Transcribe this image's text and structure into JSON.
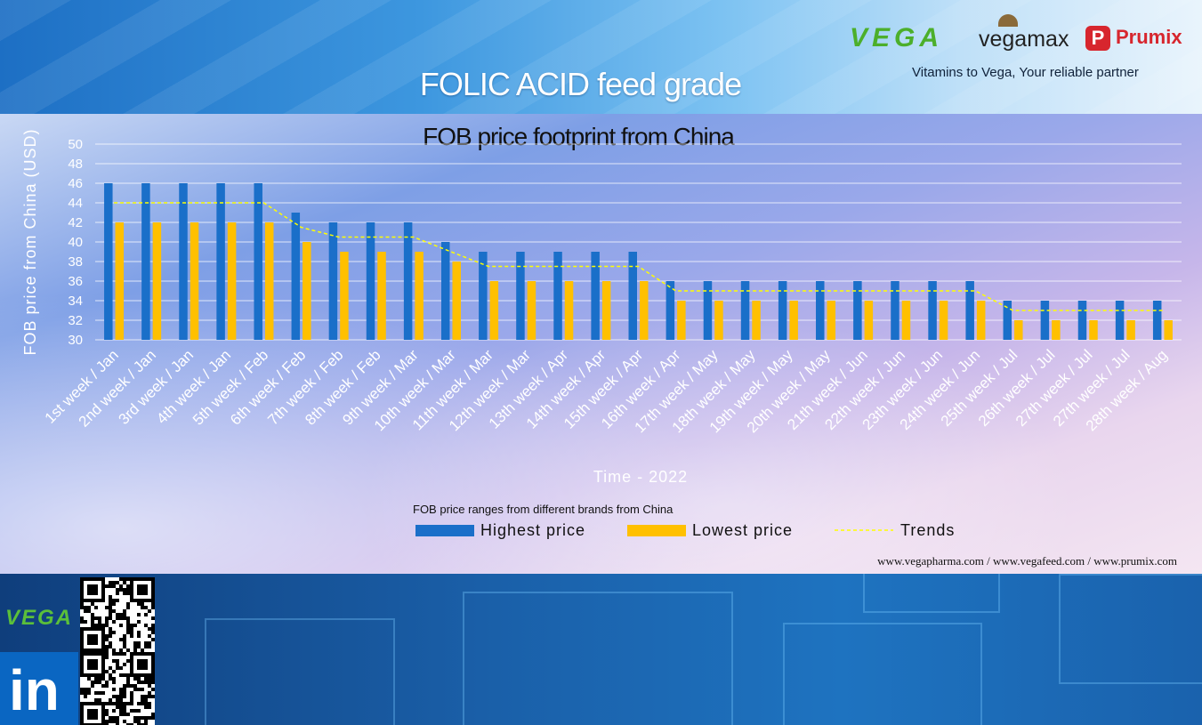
{
  "header": {
    "title": "FOLIC ACID feed grade",
    "tagline": "Vitamins to Vega, Your reliable partner",
    "logos": {
      "vega": "VEGA",
      "vegamax": "vegamax",
      "prumix": "Prumix"
    }
  },
  "chart_data": {
    "type": "bar",
    "title": "FOB price footprint from China",
    "xlabel": "Time - 2022",
    "ylabel": "FOB price from China (USD)",
    "ylim": [
      30,
      50
    ],
    "yticks": [
      30,
      32,
      34,
      36,
      38,
      40,
      42,
      44,
      46,
      48,
      50
    ],
    "grid": true,
    "legend_placement": "bottom",
    "legend_title": "FOB price ranges from different brands from China",
    "categories": [
      "1st week / Jan",
      "2nd week / Jan",
      "3rd week / Jan",
      "4th week / Jan",
      "5th week / Feb",
      "6th week / Feb",
      "7th week / Feb",
      "8th week / Feb",
      "9th week / Mar",
      "10th week / Mar",
      "11th week / Mar",
      "12th week / Mar",
      "13th week / Apr",
      "14th week / Apr",
      "15th week / Apr",
      "16th week / Apr",
      "17th week / May",
      "18th week / May",
      "19th week / May",
      "20th week / May",
      "21th week / Jun",
      "22th week / Jun",
      "23th week / Jun",
      "24th week / Jun",
      "25th week / Jul",
      "26th week / Jul",
      "27th week / Jul",
      "27th week / Jul",
      "28th week / Aug"
    ],
    "series": [
      {
        "name": "Highest price",
        "type": "bar",
        "color": "#1a6fc9",
        "values": [
          46,
          46,
          46,
          46,
          46,
          43,
          42,
          42,
          42,
          40,
          39,
          39,
          39,
          39,
          39,
          36,
          36,
          36,
          36,
          36,
          36,
          36,
          36,
          36,
          34,
          34,
          34,
          34,
          34
        ]
      },
      {
        "name": "Lowest price",
        "type": "bar",
        "color": "#ffc000",
        "values": [
          42,
          42,
          42,
          42,
          42,
          40,
          39,
          39,
          39,
          38,
          36,
          36,
          36,
          36,
          36,
          34,
          34,
          34,
          34,
          34,
          34,
          34,
          34,
          34,
          32,
          32,
          32,
          32,
          32
        ]
      },
      {
        "name": "Trends",
        "type": "line",
        "style": "dashed",
        "color": "#ffff00",
        "values": [
          44,
          44,
          44,
          44,
          44,
          41.5,
          40.5,
          40.5,
          40.5,
          39,
          37.5,
          37.5,
          37.5,
          37.5,
          37.5,
          35,
          35,
          35,
          35,
          35,
          35,
          35,
          35,
          35,
          33,
          33,
          33,
          33,
          33
        ]
      }
    ]
  },
  "footer": {
    "sites": "www.vegapharma.com / www.vegafeed.com / www.prumix.com",
    "vega": "VEGA",
    "linkedin": "in"
  }
}
